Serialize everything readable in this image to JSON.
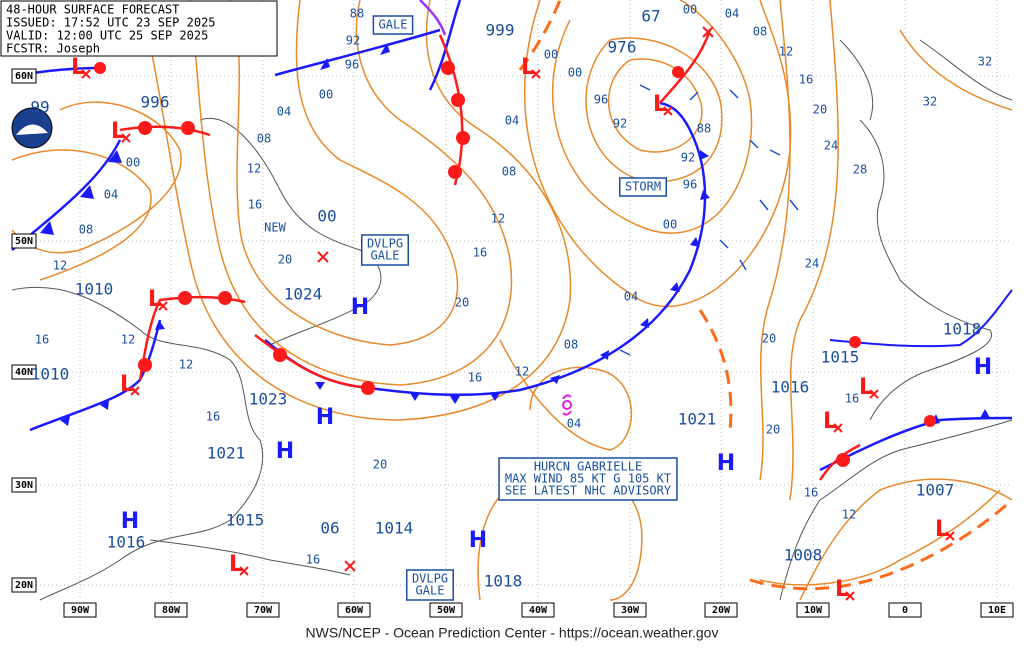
{
  "header": {
    "product": "48-HOUR SURFACE FORECAST",
    "issued": "ISSUED: 17:52 UTC 23 SEP 2025",
    "valid": "VALID: 12:00 UTC 25 SEP 2025",
    "forecaster": "FCSTR: Joseph"
  },
  "footer": "NWS/NCEP - Ocean Prediction Center - https://ocean.weather.gov",
  "lat_labels": [
    "60N",
    "50N",
    "40N",
    "30N",
    "20N"
  ],
  "lon_labels": [
    "90W",
    "80W",
    "70W",
    "60W",
    "50W",
    "40W",
    "30W",
    "20W",
    "10W",
    "0",
    "10E"
  ],
  "pressures": [
    "99",
    "996",
    "999",
    "976",
    "67",
    "00",
    "1024",
    "1010",
    "1010",
    "1023",
    "1021",
    "1015",
    "1016",
    "06",
    "1014",
    "1018",
    "1021",
    "1016",
    "1015",
    "1018",
    "1007",
    "1008"
  ],
  "isobar_labels": [
    "88",
    "92",
    "96",
    "00",
    "04",
    "08",
    "12",
    "16",
    "20",
    "00",
    "04",
    "08",
    "12",
    "16",
    "12",
    "12",
    "16",
    "20",
    "16",
    "16",
    "12",
    "08",
    "04",
    "00",
    "20",
    "16",
    "12",
    "08",
    "04",
    "00",
    "00",
    "00",
    "04",
    "08",
    "12",
    "16",
    "20",
    "24",
    "28",
    "32",
    "32",
    "24",
    "20",
    "20",
    "16",
    "16",
    "12",
    "96",
    "92",
    "88",
    "92",
    "96",
    "04"
  ],
  "highs": [
    "H",
    "H",
    "H",
    "H",
    "H",
    "H",
    "H"
  ],
  "lows": [
    "L",
    "L",
    "L",
    "L",
    "L",
    "L",
    "L",
    "L",
    "L",
    "L",
    "L"
  ],
  "boxes": [
    [
      "GALE"
    ],
    [
      "STORM"
    ],
    [
      "DVLPG",
      "GALE"
    ],
    [
      "DVLPG",
      "GALE"
    ],
    [
      "HURCN GABRIELLE",
      "MAX WIND 85 KT G 105 KT",
      "SEE LATEST NHC ADVISORY"
    ]
  ],
  "notes": [
    "NEW"
  ]
}
